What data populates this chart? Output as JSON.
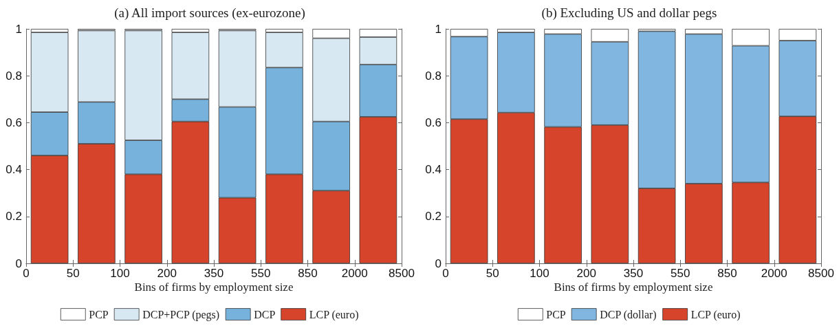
{
  "chart_data": [
    {
      "type": "bar",
      "title": "(a) All import sources (ex-eurozone)",
      "xlabel": "Bins of firms by employment size",
      "stacked": true,
      "legend": "bottom",
      "grid": false,
      "categories": [
        null,
        null,
        null,
        null,
        null,
        null,
        null,
        null
      ],
      "annotations": [
        "0",
        "50",
        "100",
        "200",
        "350",
        "550",
        "850",
        "2000",
        "8500"
      ],
      "ylim": [
        0,
        1
      ],
      "yticks": [
        0,
        0.2,
        0.4,
        0.6,
        0.8,
        1
      ],
      "series": [
        {
          "name": "LCP (euro)",
          "color": "#d6452b",
          "values": [
            0.46,
            0.51,
            0.38,
            0.605,
            0.28,
            0.38,
            0.31,
            0.625
          ]
        },
        {
          "name": "DCP",
          "color": "#76b2dc",
          "values": [
            0.185,
            0.178,
            0.145,
            0.095,
            0.387,
            0.455,
            0.295,
            0.223
          ]
        },
        {
          "name": "DCP+PCP (pegs)",
          "color": "#d8e8f3",
          "values": [
            0.34,
            0.305,
            0.468,
            0.285,
            0.326,
            0.15,
            0.355,
            0.117
          ]
        },
        {
          "name": "PCP",
          "color": "#ffffff",
          "values": [
            0.015,
            0.007,
            0.007,
            0.015,
            0.007,
            0.015,
            0.04,
            0.035
          ]
        }
      ]
    },
    {
      "type": "bar",
      "title": "(b) Excluding US and dollar pegs",
      "xlabel": "Bins of firms by employment size",
      "stacked": true,
      "legend": "bottom",
      "grid": false,
      "categories": [
        null,
        null,
        null,
        null,
        null,
        null,
        null,
        null
      ],
      "annotations": [
        "0",
        "50",
        "100",
        "200",
        "350",
        "550",
        "850",
        "2000",
        "8500"
      ],
      "ylim": [
        0,
        1
      ],
      "yticks": [
        0,
        0.2,
        0.4,
        0.6,
        0.8,
        1
      ],
      "series": [
        {
          "name": "LCP (euro)",
          "color": "#d6452b",
          "values": [
            0.615,
            0.643,
            0.582,
            0.59,
            0.32,
            0.34,
            0.345,
            0.627
          ]
        },
        {
          "name": "DCP (dollar)",
          "color": "#80b6df",
          "values": [
            0.352,
            0.342,
            0.396,
            0.355,
            0.67,
            0.638,
            0.583,
            0.323
          ]
        },
        {
          "name": "PCP",
          "color": "#ffffff",
          "values": [
            0.033,
            0.015,
            0.022,
            0.055,
            0.01,
            0.022,
            0.072,
            0.05
          ]
        }
      ]
    }
  ]
}
